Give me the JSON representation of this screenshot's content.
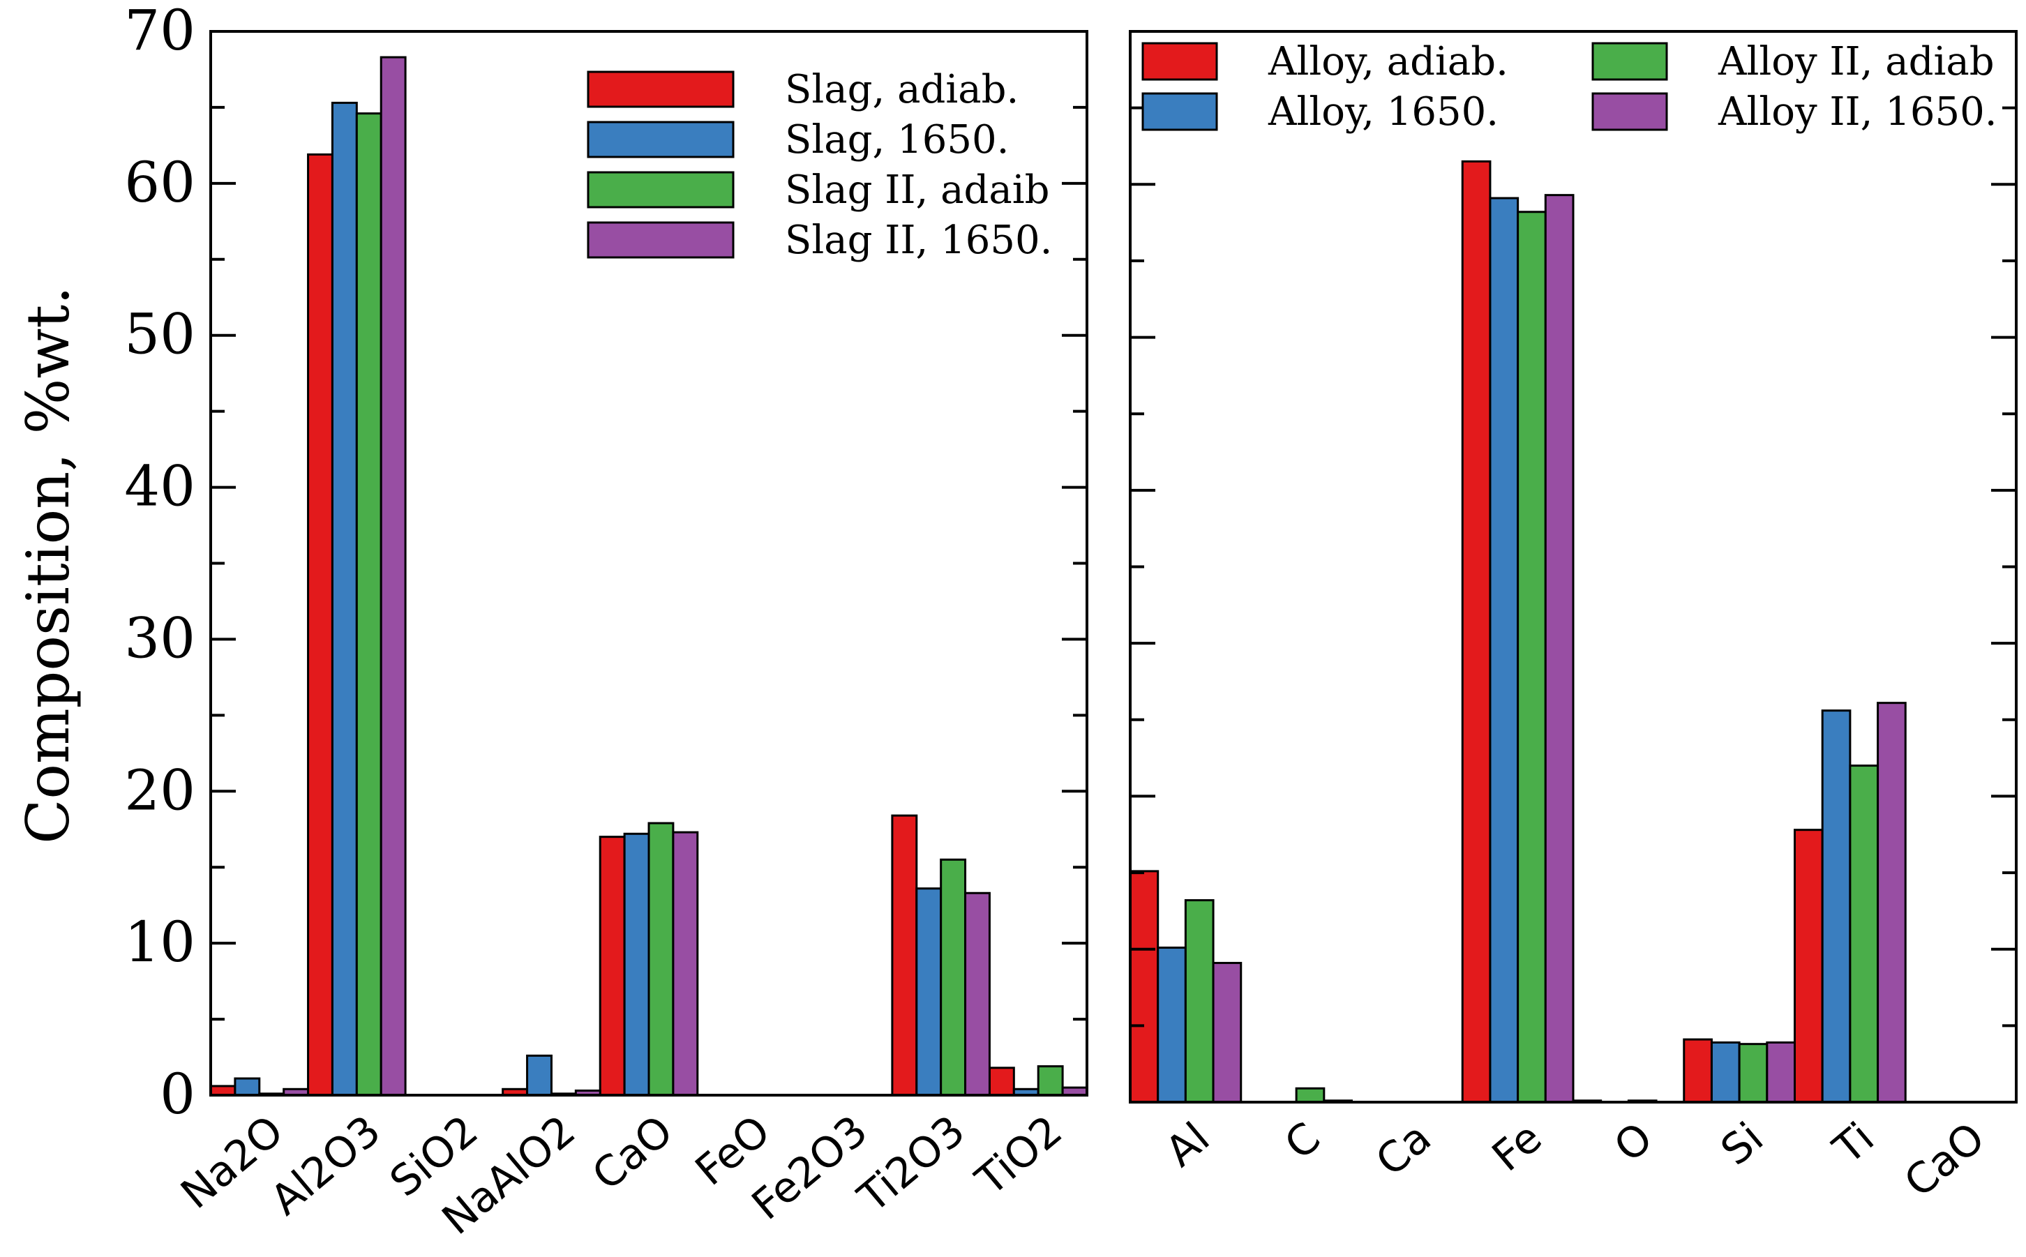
{
  "chart_data": [
    {
      "type": "bar",
      "ylabel": "Composition, %wt.",
      "ylim": [
        0,
        70
      ],
      "yticks": [
        0,
        10,
        20,
        30,
        40,
        50,
        60,
        70
      ],
      "legend_position": "top-right",
      "categories": [
        "Na2O",
        "Al2O3",
        "SiO2",
        "NaAlO2",
        "CaO",
        "FeO",
        "Fe2O3",
        "Ti2O3",
        "TiO2"
      ],
      "series": [
        {
          "name": "Slag, adiab.",
          "color": "#e31a1c",
          "values": [
            0.6,
            61.9,
            0.0,
            0.4,
            17.0,
            0.0,
            0.0,
            18.4,
            1.8
          ]
        },
        {
          "name": "Slag, 1650.",
          "color": "#3a7ebf",
          "values": [
            1.1,
            65.3,
            0.0,
            2.6,
            17.2,
            0.0,
            0.0,
            13.6,
            0.4
          ]
        },
        {
          "name": "Slag II, adaib",
          "color": "#4aae4a",
          "values": [
            0.1,
            64.6,
            0.0,
            0.1,
            17.9,
            0.0,
            0.0,
            15.5,
            1.9
          ]
        },
        {
          "name": "Slag II, 1650.",
          "color": "#984ea3",
          "values": [
            0.4,
            68.3,
            0.0,
            0.3,
            17.3,
            0.0,
            0.0,
            13.3,
            0.5
          ]
        }
      ]
    },
    {
      "type": "bar",
      "ylim": [
        0,
        70
      ],
      "legend_position": "top",
      "categories": [
        "Al",
        "C",
        "Ca",
        "Fe",
        "O",
        "Si",
        "Ti",
        "CaO"
      ],
      "series": [
        {
          "name": "Alloy, adiab.",
          "color": "#e31a1c",
          "values": [
            15.1,
            0.0,
            0.0,
            61.5,
            0.1,
            4.1,
            17.8,
            0.0
          ]
        },
        {
          "name": "Alloy, 1650.",
          "color": "#3a7ebf",
          "values": [
            10.1,
            0.0,
            0.0,
            59.1,
            0.0,
            3.9,
            25.6,
            0.0
          ]
        },
        {
          "name": "Alloy II, adiab",
          "color": "#4aae4a",
          "values": [
            13.2,
            0.9,
            0.0,
            58.2,
            0.1,
            3.8,
            22.0,
            0.0
          ]
        },
        {
          "name": "Alloy II, 1650.",
          "color": "#984ea3",
          "values": [
            9.1,
            0.1,
            0.0,
            59.3,
            0.0,
            3.9,
            26.1,
            0.0
          ]
        }
      ]
    }
  ]
}
